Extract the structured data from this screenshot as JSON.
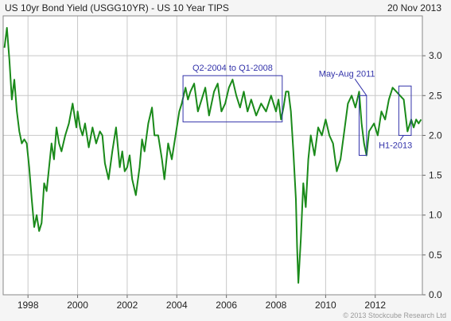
{
  "header": {
    "title": "US 10yr Bond Yield (USGG10YR) - US 10 Year TIPS",
    "date": "20 Nov 2013"
  },
  "footer": {
    "copyright": "© 2013 Stockcube Research Ltd"
  },
  "colors": {
    "line": "#1a8a1a",
    "annotation": "#3333aa",
    "grid": "#c8c8c8",
    "plot_bg": "#ffffff",
    "page_bg": "#f5f5f5"
  },
  "chart_data": {
    "type": "line",
    "title": "US 10yr Bond Yield (USGG10YR) - US 10 Year TIPS",
    "xlabel": "",
    "ylabel": "",
    "xlim": [
      1997.0,
      2013.9
    ],
    "ylim": [
      0.0,
      3.5
    ],
    "x_ticks": [
      1998,
      2000,
      2002,
      2004,
      2006,
      2008,
      2010,
      2012
    ],
    "y_ticks": [
      0.0,
      0.5,
      1.0,
      1.5,
      2.0,
      2.5,
      3.0
    ],
    "y_tick_labels": [
      "0.0",
      "0.5",
      "1.0",
      "1.5",
      "2.0",
      "2.5",
      "3.0"
    ],
    "y_axis_side": "right",
    "grid": true,
    "series": [
      {
        "x": [
          1997.05,
          1997.15,
          1997.25,
          1997.35,
          1997.45,
          1997.55,
          1997.65,
          1997.75,
          1997.85,
          1997.95,
          1998.05,
          1998.15,
          1998.25,
          1998.35,
          1998.45,
          1998.55,
          1998.65,
          1998.75,
          1998.85,
          1998.95,
          1999.05,
          1999.15,
          1999.25,
          1999.35,
          1999.5,
          1999.65,
          1999.8,
          1999.95,
          2000.0,
          2000.1,
          2000.2,
          2000.3,
          2000.45,
          2000.6,
          2000.75,
          2000.9,
          2001.0,
          2001.1,
          2001.25,
          2001.4,
          2001.55,
          2001.7,
          2001.8,
          2001.9,
          2002.0,
          2002.1,
          2002.2,
          2002.35,
          2002.5,
          2002.6,
          2002.7,
          2002.85,
          2003.0,
          2003.1,
          2003.25,
          2003.4,
          2003.5,
          2003.65,
          2003.8,
          2003.95,
          2004.1,
          2004.2,
          2004.35,
          2004.45,
          2004.55,
          2004.7,
          2004.85,
          2005.0,
          2005.15,
          2005.3,
          2005.5,
          2005.65,
          2005.8,
          2005.95,
          2006.1,
          2006.25,
          2006.4,
          2006.55,
          2006.7,
          2006.85,
          2007.0,
          2007.2,
          2007.4,
          2007.6,
          2007.8,
          2008.0,
          2008.1,
          2008.2,
          2008.3,
          2008.4,
          2008.5,
          2008.6,
          2008.7,
          2008.8,
          2008.85,
          2008.9,
          2009.0,
          2009.1,
          2009.2,
          2009.3,
          2009.4,
          2009.55,
          2009.7,
          2009.85,
          2010.0,
          2010.15,
          2010.3,
          2010.45,
          2010.6,
          2010.75,
          2010.9,
          2011.05,
          2011.2,
          2011.35,
          2011.45,
          2011.55,
          2011.65,
          2011.75,
          2011.85,
          2011.95,
          2012.1,
          2012.25,
          2012.4,
          2012.55,
          2012.7,
          2012.85,
          2013.0,
          2013.15,
          2013.3,
          2013.45,
          2013.55,
          2013.65,
          2013.75,
          2013.85
        ],
        "y": [
          3.1,
          3.35,
          2.95,
          2.45,
          2.7,
          2.3,
          2.05,
          1.9,
          1.95,
          1.9,
          1.6,
          1.2,
          0.85,
          1.0,
          0.8,
          0.9,
          1.4,
          1.3,
          1.6,
          1.9,
          1.7,
          2.1,
          1.9,
          1.8,
          2.0,
          2.15,
          2.4,
          2.1,
          2.3,
          2.1,
          2.0,
          2.15,
          1.85,
          2.1,
          1.9,
          2.05,
          2.0,
          1.65,
          1.45,
          1.8,
          2.1,
          1.6,
          1.8,
          1.55,
          1.6,
          1.75,
          1.45,
          1.25,
          1.6,
          1.95,
          1.8,
          2.15,
          2.35,
          2.0,
          2.0,
          1.7,
          1.45,
          1.9,
          1.7,
          2.0,
          2.3,
          2.4,
          2.6,
          2.45,
          2.55,
          2.65,
          2.3,
          2.45,
          2.6,
          2.25,
          2.55,
          2.65,
          2.3,
          2.4,
          2.6,
          2.7,
          2.5,
          2.35,
          2.55,
          2.3,
          2.45,
          2.25,
          2.4,
          2.3,
          2.5,
          2.3,
          2.45,
          2.2,
          2.35,
          2.55,
          2.55,
          2.3,
          1.8,
          1.2,
          0.6,
          0.15,
          0.7,
          1.4,
          1.1,
          1.7,
          2.0,
          1.75,
          2.1,
          2.0,
          2.2,
          2.0,
          1.9,
          1.55,
          1.7,
          2.05,
          2.4,
          2.5,
          2.35,
          2.55,
          2.15,
          1.9,
          1.75,
          2.05,
          2.1,
          2.15,
          2.0,
          2.3,
          2.2,
          2.45,
          2.6,
          2.55,
          2.5,
          2.45,
          2.05,
          2.2,
          2.1,
          2.2,
          2.15,
          2.2
        ]
      }
    ],
    "annotations": [
      {
        "label": "Q2-2004 to Q1-2008",
        "box_x": [
          2004.25,
          2008.25
        ],
        "box_y": [
          2.17,
          2.75
        ]
      },
      {
        "label": "May-Aug 2011",
        "box_x": [
          2011.35,
          2011.65
        ],
        "box_y": [
          1.75,
          2.5
        ]
      },
      {
        "label": "H1-2013",
        "box_x": [
          2012.95,
          2013.45
        ],
        "box_y": [
          2.0,
          2.62
        ]
      }
    ]
  }
}
